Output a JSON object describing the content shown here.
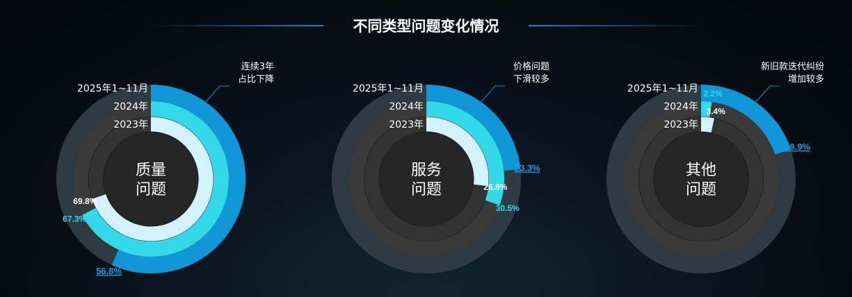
{
  "title": "不同类型问题变化情况",
  "colors": {
    "track": "#2e3a44",
    "inner_track": "#3a3a3a",
    "ring_2025": "#0f97d8",
    "ring_2024": "#33d9e8",
    "ring_2023": "#d4f1ff",
    "label_2025": "#1a9be0",
    "label_2024": "#33d9e8",
    "label_2023": "#ffffff",
    "annotation_line": "#1e8fc7"
  },
  "chart_data": [
    {
      "type": "donut",
      "center_label": [
        "质量",
        "问题"
      ],
      "ring_labels": [
        "2025年1~11月",
        "2024年",
        "2023年"
      ],
      "series": [
        {
          "name": "2025年1~11月",
          "value": 56.8,
          "label": "56.8%"
        },
        {
          "name": "2024年",
          "value": 67.3,
          "label": "67.3%"
        },
        {
          "name": "2023年",
          "value": 69.8,
          "label": "69.8%"
        }
      ],
      "annotation": [
        "连续3年",
        "占比下降"
      ]
    },
    {
      "type": "donut",
      "center_label": [
        "服务",
        "问题"
      ],
      "ring_labels": [
        "2025年1~11月",
        "2024年",
        "2023年"
      ],
      "series": [
        {
          "name": "2025年1~11月",
          "value": 23.3,
          "label": "23.3%"
        },
        {
          "name": "2024年",
          "value": 30.5,
          "label": "30.5%"
        },
        {
          "name": "2023年",
          "value": 26.8,
          "label": "26.8%"
        }
      ],
      "annotation": [
        "价格问题",
        "下滑较多"
      ]
    },
    {
      "type": "donut",
      "center_label": [
        "其他",
        "问题"
      ],
      "ring_labels": [
        "2025年1~11月",
        "2024年",
        "2023年"
      ],
      "series": [
        {
          "name": "2025年1~11月",
          "value": 19.9,
          "label": "19.9%"
        },
        {
          "name": "2024年",
          "value": 2.2,
          "label": "2.2%"
        },
        {
          "name": "2023年",
          "value": 3.4,
          "label": "3.4%"
        }
      ],
      "annotation": [
        "新旧款迭代纠纷",
        "增加较多"
      ]
    }
  ]
}
